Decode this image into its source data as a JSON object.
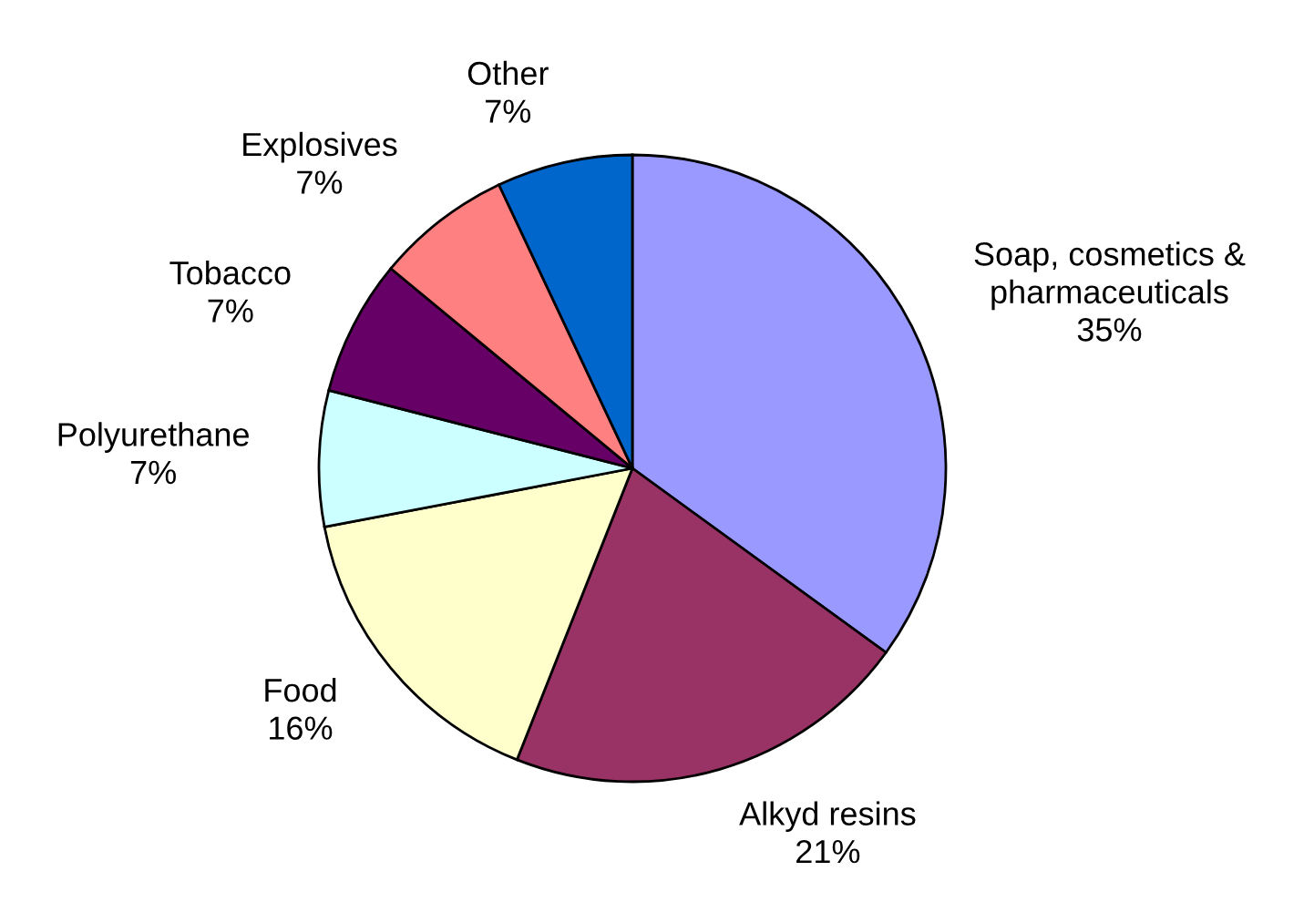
{
  "chart_data": {
    "type": "pie",
    "categories": [
      "Soap, cosmetics &\npharmaceuticals",
      "Alkyd resins",
      "Food",
      "Polyurethane",
      "Tobacco",
      "Explosives",
      "Other"
    ],
    "values": [
      35,
      21,
      16,
      7,
      7,
      7,
      7
    ],
    "value_labels": [
      "35%",
      "21%",
      "16%",
      "7%",
      "7%",
      "7%",
      "7%"
    ],
    "colors": [
      "#9999ff",
      "#993366",
      "#ffffcc",
      "#ccffff",
      "#660066",
      "#ff8080",
      "#0066cc"
    ],
    "legend": false
  }
}
